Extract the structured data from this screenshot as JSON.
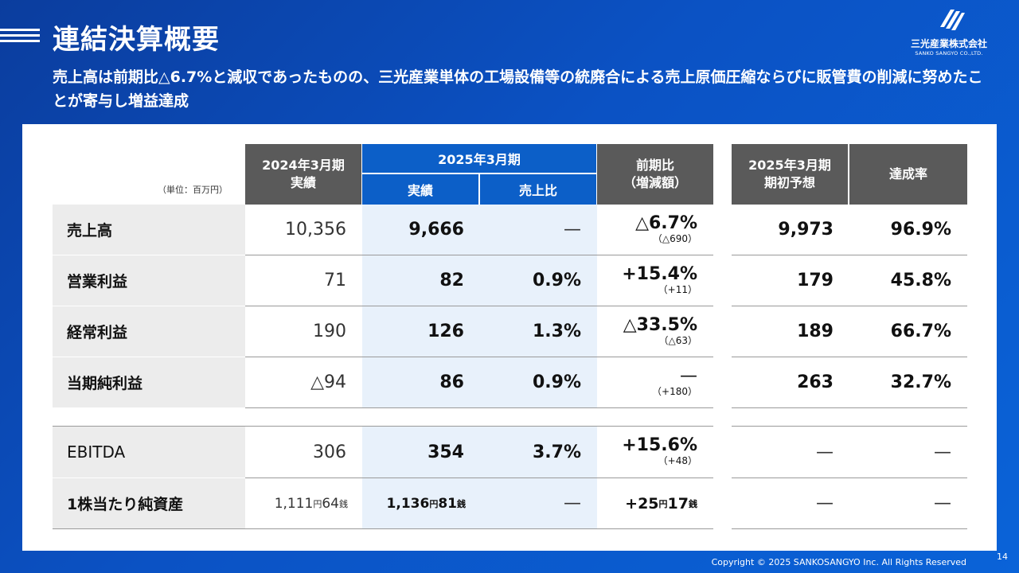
{
  "header": {
    "title": "連結決算概要",
    "subtitle": "売上高は前期比△6.7%と減収であったものの、三光産業単体の工場設備等の統廃合による売上原価圧縮ならびに販管費の削減に努めたことが寄与し増益達成"
  },
  "logo": {
    "name": "三光産業株式会社",
    "sub": "SANKO SANGYO CO.,LTD."
  },
  "table": {
    "unit": "（単位：百万円）",
    "headers": {
      "prev_year": "2024年3月期\n実績",
      "current_year": "2025年3月期",
      "actual": "実績",
      "sales_ratio": "売上比",
      "yoy": "前期比\n（増減額）",
      "forecast": "2025年3月期\n期初予想",
      "achievement": "達成率"
    },
    "rows": [
      {
        "label": "売上高",
        "prev": "10,356",
        "actual": "9,666",
        "ratio": "—",
        "yoy": "△6.7%",
        "yoy_sub": "（△690）",
        "forecast": "9,973",
        "achieve": "96.9%"
      },
      {
        "label": "営業利益",
        "prev": "71",
        "actual": "82",
        "ratio": "0.9%",
        "yoy": "+15.4%",
        "yoy_sub": "（+11）",
        "forecast": "179",
        "achieve": "45.8%"
      },
      {
        "label": "経常利益",
        "prev": "190",
        "actual": "126",
        "ratio": "1.3%",
        "yoy": "△33.5%",
        "yoy_sub": "（△63）",
        "forecast": "189",
        "achieve": "66.7%"
      },
      {
        "label": "当期純利益",
        "prev": "△94",
        "actual": "86",
        "ratio": "0.9%",
        "yoy": "—",
        "yoy_sub": "（+180）",
        "forecast": "263",
        "achieve": "32.7%"
      },
      {
        "label": "EBITDA",
        "prev": "306",
        "actual": "354",
        "ratio": "3.7%",
        "yoy": "+15.6%",
        "yoy_sub": "（+48）",
        "forecast": "—",
        "achieve": "—"
      },
      {
        "label": "1株当たり純資産",
        "prev": {
          "yen": "1,111",
          "yen_unit": "円",
          "sen": "64",
          "sen_unit": "銭"
        },
        "actual": {
          "yen": "1,136",
          "yen_unit": "円",
          "sen": "81",
          "sen_unit": "銭"
        },
        "ratio": "—",
        "yoy": {
          "yen": "+25",
          "yen_unit": "円",
          "sen": "17",
          "sen_unit": "銭"
        },
        "forecast": "—",
        "achieve": "—"
      }
    ]
  },
  "footer": {
    "copyright": "Copyright © 2025  SANKOSANGYO Inc. All Rights Reserved",
    "page": "14"
  }
}
